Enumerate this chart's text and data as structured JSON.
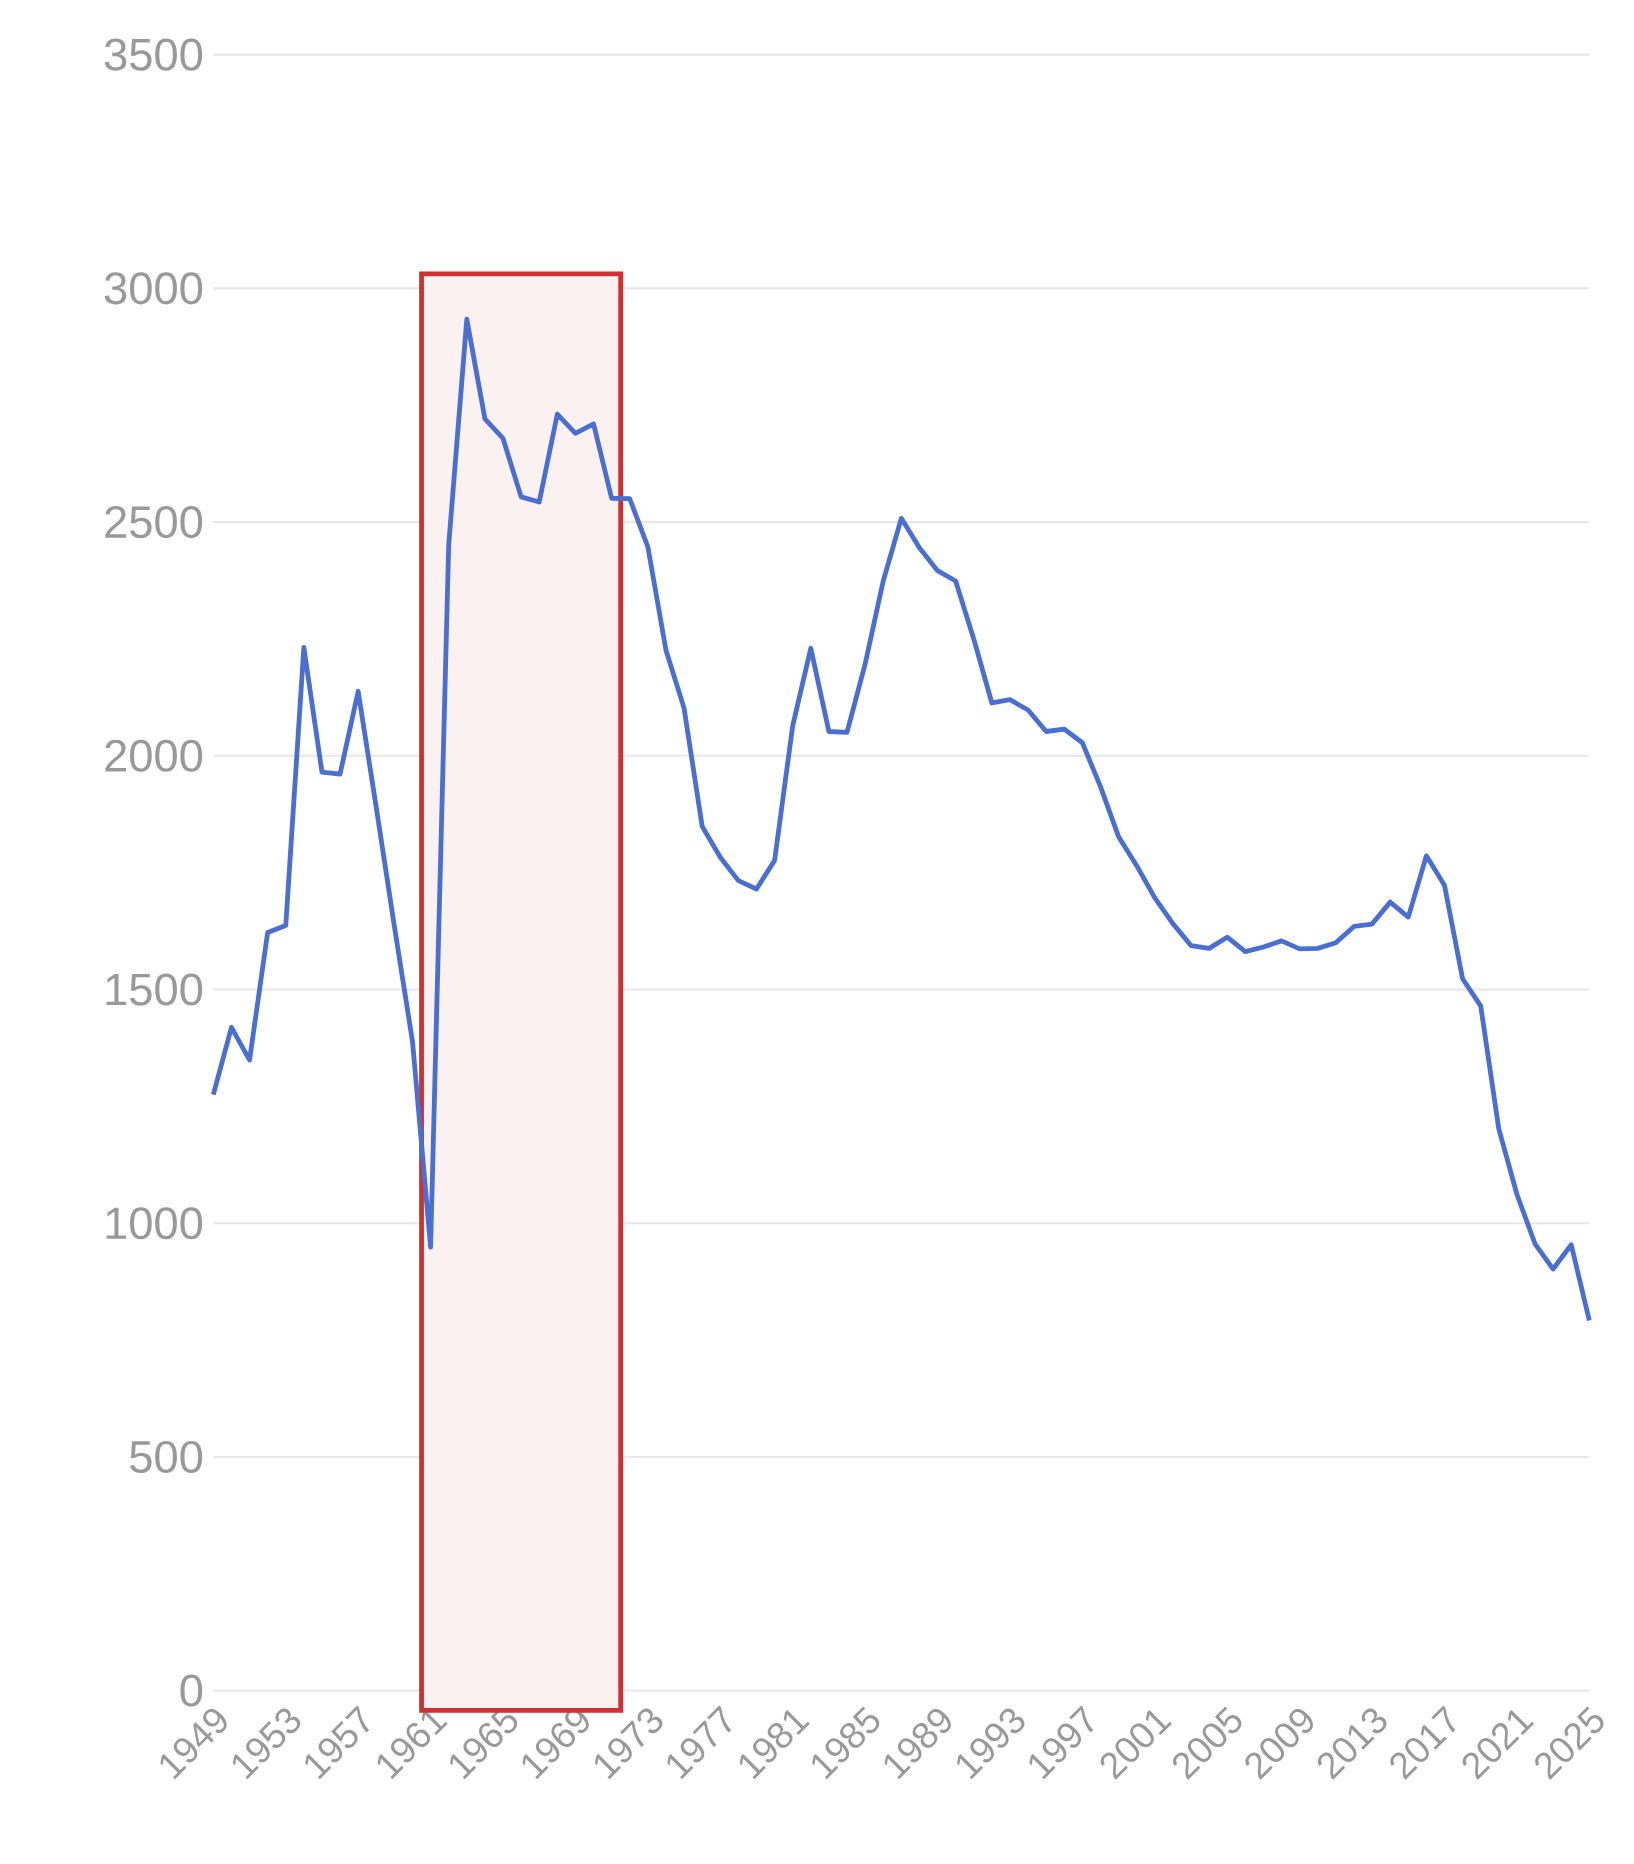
{
  "chart_data": {
    "type": "line",
    "x": [
      1949,
      1950,
      1951,
      1952,
      1953,
      1954,
      1955,
      1956,
      1957,
      1958,
      1959,
      1960,
      1961,
      1962,
      1963,
      1964,
      1965,
      1966,
      1967,
      1968,
      1969,
      1970,
      1971,
      1972,
      1973,
      1974,
      1975,
      1976,
      1977,
      1978,
      1979,
      1980,
      1981,
      1982,
      1983,
      1984,
      1985,
      1986,
      1987,
      1988,
      1989,
      1990,
      1991,
      1992,
      1993,
      1994,
      1995,
      1996,
      1997,
      1998,
      1999,
      2000,
      2001,
      2002,
      2003,
      2004,
      2005,
      2006,
      2007,
      2008,
      2009,
      2010,
      2011,
      2012,
      2013,
      2014,
      2015,
      2016,
      2017,
      2018,
      2019,
      2020,
      2021,
      2022,
      2023,
      2024,
      2025
    ],
    "series": [
      {
        "color": "#4a6fd0",
        "values": [
          1275,
          1419,
          1349,
          1622,
          1637,
          2232,
          1965,
          1961,
          2138,
          1889,
          1635,
          1389,
          949,
          2451,
          2934,
          2721,
          2679,
          2554,
          2543,
          2731,
          2690,
          2710,
          2551,
          2550,
          2447,
          2226,
          2102,
          1849,
          1783,
          1733,
          1715,
          1776,
          2064,
          2230,
          2052,
          2050,
          2196,
          2374,
          2508,
          2445,
          2396,
          2374,
          2250,
          2113,
          2120,
          2098,
          2052,
          2057,
          2028,
          1934,
          1827,
          1765,
          1696,
          1641,
          1594,
          1588,
          1612,
          1581,
          1591,
          1604,
          1587,
          1588,
          1600,
          1635,
          1640,
          1687,
          1655,
          1786,
          1723,
          1523,
          1465,
          1202,
          1062,
          956,
          902,
          954,
          792
        ]
      }
    ],
    "xlim": [
      1949,
      2025
    ],
    "xticks": [
      1949,
      1953,
      1957,
      1961,
      1965,
      1969,
      1973,
      1977,
      1981,
      1985,
      1989,
      1993,
      1997,
      2001,
      2005,
      2009,
      2013,
      2017,
      2021,
      2025
    ],
    "ylim": [
      0,
      3500
    ],
    "yticks": [
      0,
      500,
      1000,
      1500,
      2000,
      2500,
      3000,
      3500
    ],
    "grid": "y",
    "marker": "none",
    "line_style": "solid",
    "bands": [
      {
        "axis": "x",
        "from": 1960.5,
        "to": 1971.5,
        "color": "#d03030"
      }
    ]
  }
}
